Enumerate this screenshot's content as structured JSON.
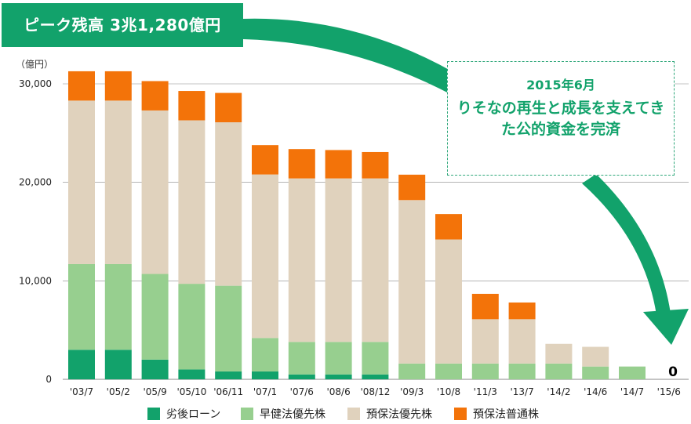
{
  "peak_label": "ピーク残高 3兆1,280億円",
  "callout": {
    "year": "2015年6月",
    "message": "りそなの再生と成長を支えてきた公的資金を完済"
  },
  "zero_label": "0",
  "colors": {
    "subordinated_loan": "#12a26b",
    "early_pref": "#97cf8f",
    "deposit_pref": "#e0d2bd",
    "deposit_common": "#f37309",
    "accent": "#12a26b",
    "axis": "#555555"
  },
  "chart_data": {
    "type": "bar",
    "stacked": true,
    "unit_label": "（億円）",
    "categories": [
      "'03/7",
      "'05/2",
      "'05/9",
      "'05/10",
      "'06/11",
      "'07/1",
      "'07/6",
      "'08/6",
      "'08/12",
      "'09/3",
      "'10/8",
      "'11/3",
      "'13/7",
      "'14/2",
      "'14/6",
      "'14/7",
      "'15/6"
    ],
    "ylim": [
      0,
      30000
    ],
    "yticks": [
      0,
      10000,
      20000,
      30000
    ],
    "ytick_labels": [
      "0",
      "10,000",
      "20,000",
      "30,000"
    ],
    "series": [
      {
        "name": "劣後ローン",
        "color": "#12a26b",
        "values": [
          3000,
          3000,
          2000,
          1000,
          800,
          800,
          500,
          500,
          500,
          0,
          0,
          0,
          0,
          0,
          0,
          0,
          0
        ]
      },
      {
        "name": "早健法優先株",
        "color": "#97cf8f",
        "values": [
          8700,
          8700,
          8700,
          8700,
          8700,
          3400,
          3300,
          3300,
          3300,
          1600,
          1600,
          1600,
          1600,
          1600,
          1300,
          1300,
          0
        ]
      },
      {
        "name": "預保法優先株",
        "color": "#e0d2bd",
        "values": [
          16600,
          16600,
          16600,
          16600,
          16600,
          16600,
          16600,
          16600,
          16600,
          16600,
          12600,
          4500,
          4500,
          2000,
          2000,
          0,
          0
        ]
      },
      {
        "name": "預保法普通株",
        "color": "#f37309",
        "values": [
          2980,
          2980,
          2980,
          2980,
          2980,
          2980,
          2980,
          2880,
          2680,
          2580,
          2580,
          2580,
          1700,
          0,
          0,
          0,
          0
        ]
      }
    ]
  }
}
